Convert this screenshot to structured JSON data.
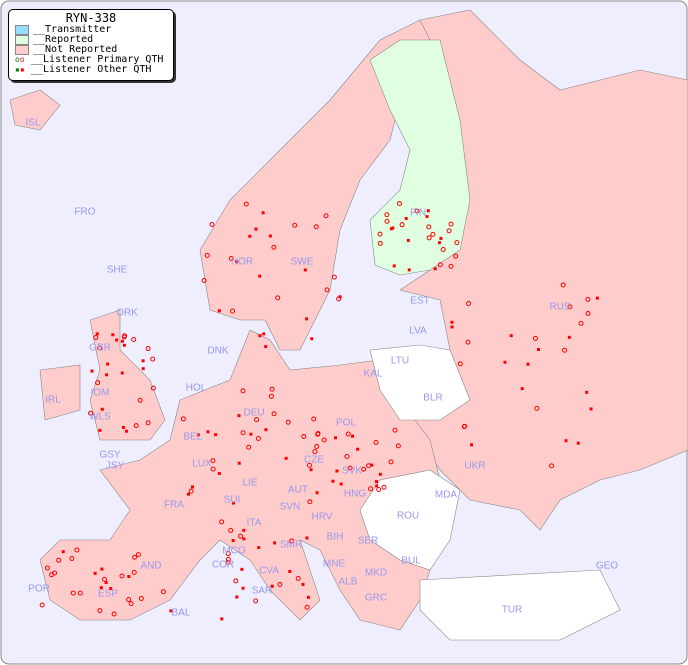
{
  "legend": {
    "title": "RYN-338",
    "items": [
      {
        "label": "__Transmitter",
        "color": "#99ddff"
      },
      {
        "label": "__Reported",
        "color": "#e0ffe0"
      },
      {
        "label": "__Not Reported",
        "color": "#ffcccc"
      },
      {
        "label": "__Listener Primary QTH",
        "marker": "circle"
      },
      {
        "label": "__Listener Other QTH",
        "marker": "square"
      }
    ]
  },
  "colors": {
    "sea": "#eeeeff",
    "not_reported": "#ffcccc",
    "reported": "#e0ffe0",
    "no_data": "#ffffff",
    "marker": "#ff0000",
    "label": "#9999ee"
  },
  "countries": [
    "ISL",
    "FRO",
    "SHE",
    "ORK",
    "NOR",
    "SWE",
    "FIN",
    "EST",
    "LVA",
    "LTU",
    "KAL",
    "BLR",
    "RUS",
    "DNK",
    "HOL",
    "DEU",
    "POL",
    "IRL",
    "GBR",
    "IOM",
    "WLS",
    "GSY",
    "JSY",
    "BEL",
    "LUX",
    "FRA",
    "SUI",
    "LIE",
    "AUT",
    "CZE",
    "SVK",
    "HNG",
    "UKR",
    "MDA",
    "ROU",
    "SVN",
    "HRV",
    "BIH",
    "SER",
    "MNE",
    "ALB",
    "MKD",
    "BUL",
    "GRC",
    "TUR",
    "GEO",
    "ITA",
    "MCO",
    "COR",
    "CVA",
    "SMR",
    "SAR",
    "AND",
    "ESP",
    "POR",
    "BAL"
  ]
}
